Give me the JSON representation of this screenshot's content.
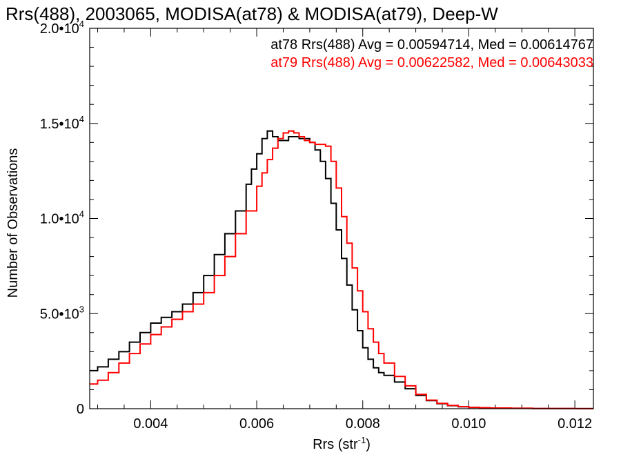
{
  "chart_data": {
    "type": "line",
    "title": "Rrs(488), 2003065, MODISA(at78) & MODISA(at79), Deep-W",
    "xlabel": "Rrs (str",
    "xlabel_sup": "-1",
    "xlabel_close": ")",
    "ylabel": "Number of Observations",
    "xlim": [
      0.00285,
      0.01235
    ],
    "ylim": [
      0,
      20000
    ],
    "x_ticks": [
      {
        "value": 0.004,
        "label": "0.004"
      },
      {
        "value": 0.006,
        "label": "0.006"
      },
      {
        "value": 0.008,
        "label": "0.008"
      },
      {
        "value": 0.01,
        "label": "0.010"
      },
      {
        "value": 0.012,
        "label": "0.012"
      }
    ],
    "y_ticks": [
      {
        "value": 0,
        "label": "0",
        "exp": ""
      },
      {
        "value": 5000,
        "label": "5.0•10",
        "exp": "3"
      },
      {
        "value": 10000,
        "label": "1.0•10",
        "exp": "4"
      },
      {
        "value": 15000,
        "label": "1.5•10",
        "exp": "4"
      },
      {
        "value": 20000,
        "label": "2.0•10",
        "exp": "4"
      }
    ],
    "annotations": [
      {
        "text": "at78 Rrs(488) Avg = 0.00594714, Med = 0.00614767",
        "color": "#000000"
      },
      {
        "text": "at79 Rrs(488) Avg = 0.00622582, Med = 0.00643033",
        "color": "#ff0000"
      }
    ],
    "series": [
      {
        "color": "#000000",
        "x": [
          0.00285,
          0.003,
          0.0032,
          0.0034,
          0.0036,
          0.0038,
          0.004,
          0.0042,
          0.0044,
          0.0046,
          0.0048,
          0.005,
          0.0052,
          0.0054,
          0.0056,
          0.0058,
          0.0059,
          0.006,
          0.0061,
          0.0062,
          0.0063,
          0.0064,
          0.0066,
          0.0068,
          0.007,
          0.0071,
          0.0072,
          0.0073,
          0.0074,
          0.0075,
          0.0076,
          0.0077,
          0.0078,
          0.0079,
          0.008,
          0.0081,
          0.0082,
          0.0083,
          0.0084,
          0.0086,
          0.0088,
          0.009,
          0.0092,
          0.0094,
          0.0096,
          0.0098,
          0.01,
          0.0102,
          0.0104,
          0.0108,
          0.0112,
          0.0116,
          0.012,
          0.01235
        ],
        "y": [
          2000,
          2200,
          2600,
          3000,
          3500,
          4000,
          4500,
          4800,
          5100,
          5500,
          6100,
          7000,
          8100,
          9200,
          10400,
          11800,
          12600,
          13400,
          14200,
          14600,
          14300,
          14100,
          14300,
          14200,
          14000,
          13600,
          13000,
          12100,
          10800,
          9400,
          7900,
          6500,
          5200,
          4100,
          3200,
          2600,
          2150,
          1900,
          1750,
          1400,
          1050,
          700,
          430,
          260,
          160,
          100,
          70,
          50,
          35,
          20,
          12,
          8,
          5,
          3
        ]
      },
      {
        "color": "#ff0000",
        "x": [
          0.00285,
          0.003,
          0.0032,
          0.0034,
          0.0036,
          0.0038,
          0.004,
          0.0042,
          0.0044,
          0.0046,
          0.0048,
          0.005,
          0.0052,
          0.0054,
          0.0056,
          0.0058,
          0.006,
          0.0061,
          0.0062,
          0.0063,
          0.0064,
          0.0065,
          0.0066,
          0.0067,
          0.0068,
          0.0069,
          0.007,
          0.0071,
          0.0072,
          0.0073,
          0.0074,
          0.0075,
          0.0076,
          0.0077,
          0.0078,
          0.0079,
          0.008,
          0.0081,
          0.0082,
          0.0083,
          0.0084,
          0.0086,
          0.0088,
          0.009,
          0.0092,
          0.0094,
          0.0096,
          0.0098,
          0.01,
          0.0102,
          0.0104,
          0.0108,
          0.0112,
          0.0116,
          0.012,
          0.01235
        ],
        "y": [
          1300,
          1500,
          1900,
          2400,
          2900,
          3400,
          3900,
          4300,
          4700,
          5100,
          5500,
          6100,
          7000,
          8000,
          9200,
          10400,
          11700,
          12400,
          13100,
          13700,
          14200,
          14500,
          14600,
          14500,
          14300,
          14100,
          14000,
          13900,
          13900,
          13800,
          13000,
          11600,
          10100,
          8700,
          7400,
          6200,
          5100,
          4200,
          3500,
          2900,
          2400,
          1700,
          1200,
          750,
          450,
          280,
          170,
          110,
          70,
          50,
          35,
          20,
          12,
          8,
          5,
          3
        ]
      }
    ]
  }
}
